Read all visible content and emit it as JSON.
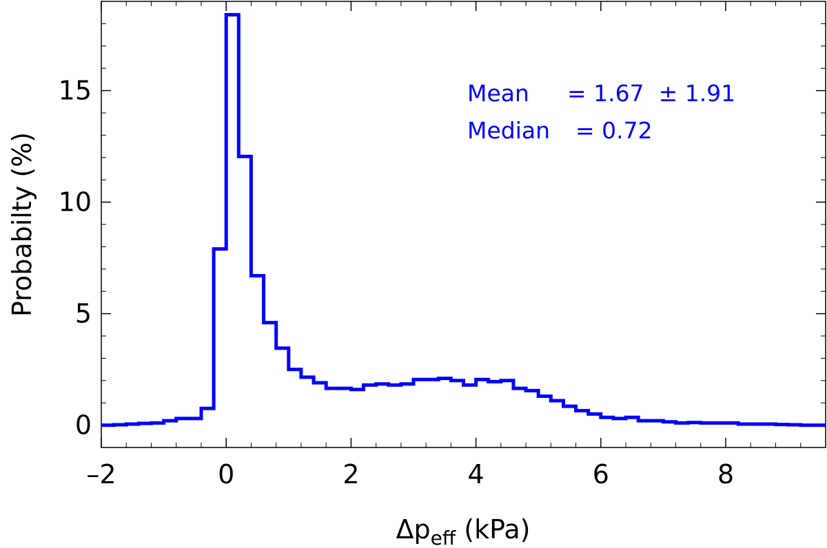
{
  "chart_data": {
    "type": "histogram",
    "title": "",
    "xlabel": {
      "base": "Δp",
      "subscript": "eff",
      "suffix": " (kPa)"
    },
    "ylabel": "Probabilty (%)",
    "xlim": [
      -2,
      9.6
    ],
    "ylim": [
      -1,
      19
    ],
    "x_ticks": [
      -2,
      0,
      2,
      4,
      6,
      8
    ],
    "x_tick_labels": [
      "–2",
      "0",
      "2",
      "4",
      "6",
      "8"
    ],
    "y_ticks": [
      0,
      5,
      10,
      15
    ],
    "y_tick_labels": [
      "0",
      "5",
      "10",
      "15"
    ],
    "grid": false,
    "series": [
      {
        "color": "#0000ff",
        "bin_edges": [
          -2,
          -1.8,
          -1.6,
          -1.4,
          -1.2,
          -1.0,
          -0.8,
          -0.6,
          -0.4,
          -0.2,
          0.0,
          0.2,
          0.4,
          0.6,
          0.8,
          1.0,
          1.2,
          1.4,
          1.6,
          1.8,
          2.0,
          2.2,
          2.4,
          2.6,
          2.8,
          3.0,
          3.2,
          3.4,
          3.6,
          3.8,
          4.0,
          4.2,
          4.4,
          4.6,
          4.8,
          5.0,
          5.2,
          5.4,
          5.6,
          5.8,
          6.0,
          6.2,
          6.4,
          6.6,
          6.8,
          7.0,
          7.2,
          7.4,
          7.6,
          7.8,
          8.0,
          8.2,
          8.4,
          8.6,
          8.8,
          9.0,
          9.2,
          9.4,
          9.6
        ],
        "values": [
          0.0,
          0.02,
          0.05,
          0.08,
          0.1,
          0.2,
          0.3,
          0.3,
          0.75,
          7.9,
          18.4,
          12.05,
          6.7,
          4.6,
          3.45,
          2.5,
          2.15,
          1.9,
          1.65,
          1.65,
          1.6,
          1.8,
          1.85,
          1.8,
          1.85,
          2.05,
          2.05,
          2.1,
          2.0,
          1.8,
          2.05,
          1.95,
          2.0,
          1.65,
          1.55,
          1.3,
          1.1,
          0.85,
          0.65,
          0.5,
          0.35,
          0.3,
          0.35,
          0.2,
          0.2,
          0.15,
          0.1,
          0.12,
          0.1,
          0.1,
          0.1,
          0.05,
          0.05,
          0.05,
          0.03,
          0.02,
          0.0,
          0.0
        ]
      }
    ],
    "annotations": {
      "color": "#0000ff",
      "mean_label": "Mean",
      "mean_value": "= 1.67  ± 1.91",
      "median_label": "Median",
      "median_value": "= 0.72"
    }
  }
}
